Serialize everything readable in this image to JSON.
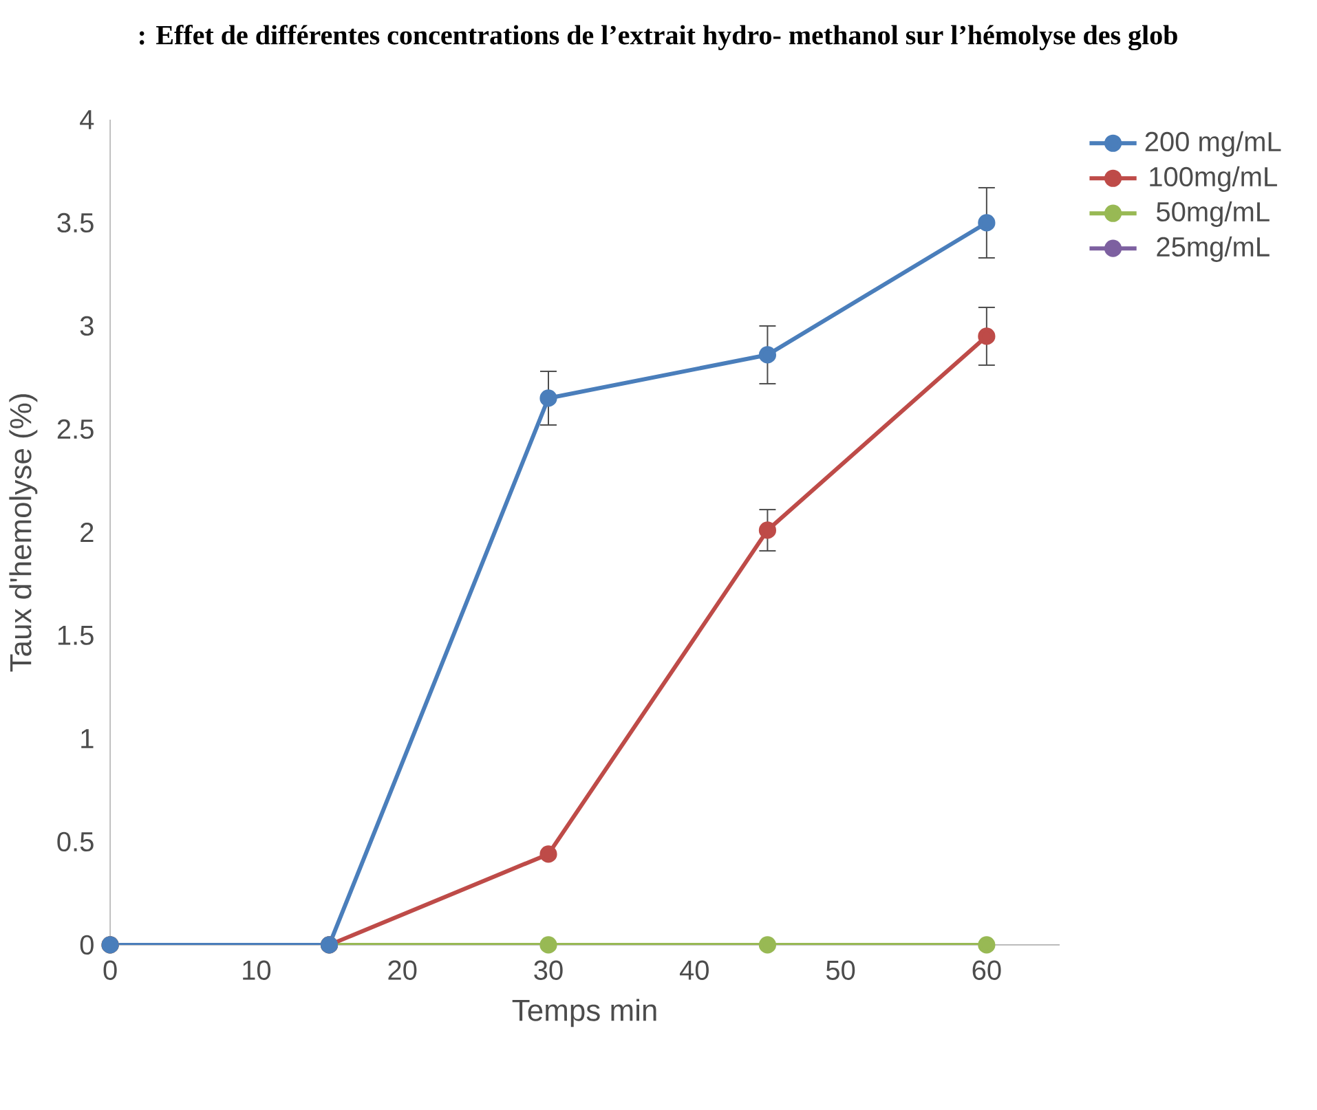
{
  "chart_data": {
    "type": "line",
    "title": ": Effet de différentes concentrations de l’extrait hydro-  methanol sur l’hémolyse des glob",
    "xlabel": "Temps min",
    "ylabel": "Taux d'hemolyse (%)",
    "x": [
      0,
      15,
      30,
      45,
      60
    ],
    "series": [
      {
        "name": "200 mg/mL",
        "color": "#4a7ebb",
        "values": [
          0,
          0,
          2.65,
          2.86,
          3.5
        ],
        "errors": [
          null,
          null,
          0.13,
          0.14,
          0.17
        ]
      },
      {
        "name": "100mg/mL",
        "color": "#be4b48",
        "values": [
          0,
          0,
          0.44,
          2.01,
          2.95
        ],
        "errors": [
          null,
          null,
          null,
          0.1,
          0.14
        ]
      },
      {
        "name": "50mg/mL",
        "color": "#98b954",
        "values": [
          0,
          0,
          0,
          0,
          0
        ]
      },
      {
        "name": "25mg/mL",
        "color": "#7d60a0",
        "values": [
          null,
          null,
          null,
          null,
          null
        ]
      }
    ],
    "xlim": [
      0,
      65
    ],
    "xticks": [
      0,
      10,
      20,
      30,
      40,
      50,
      60
    ],
    "ylim": [
      0,
      4
    ],
    "yticks": [
      0,
      0.5,
      1,
      1.5,
      2,
      2.5,
      3,
      3.5,
      4
    ],
    "grid": false,
    "legend": "right",
    "marker": "circle",
    "line_style": "solid"
  }
}
